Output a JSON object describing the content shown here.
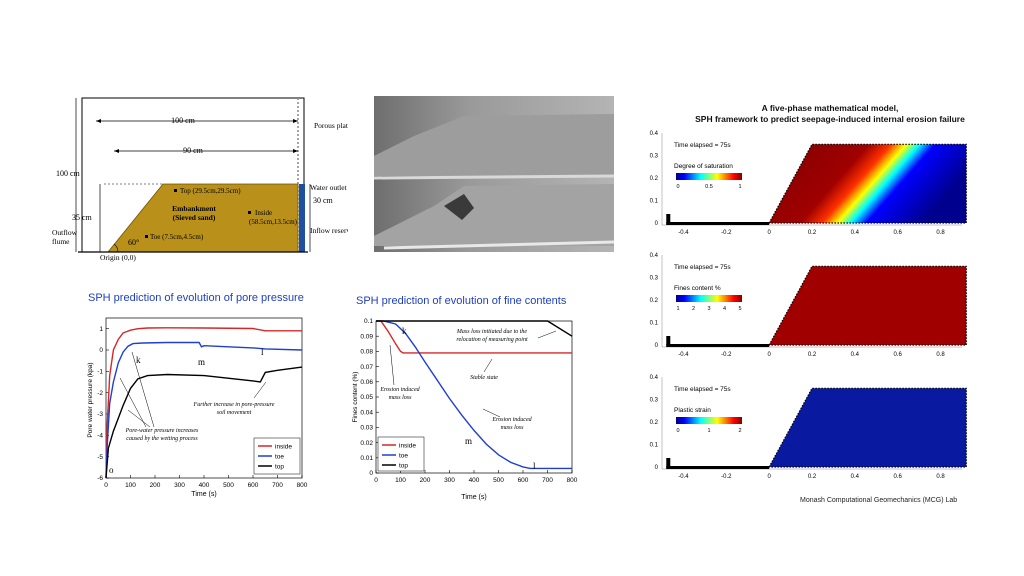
{
  "schematic": {
    "dim_100cm_top": "100 cm",
    "dim_90cm": "90 cm",
    "dim_100cm_left": "100 cm",
    "dim_35cm": "35 cm",
    "dim_30cm": "30 cm",
    "angle": "60°",
    "porous_plate": "Porous plate",
    "water_outlet": "Water outlet",
    "inflow_reservoir": "Inflow reservoir",
    "outflow_flume_1": "Outflow",
    "outflow_flume_2": "flume",
    "origin": "Origin (0,0)",
    "embankment_1": "Embankment",
    "embankment_2": "(Sieved sand)",
    "top_point": "Top (29.5cm,29.5cm)",
    "inside_point_1": "Inside",
    "inside_point_2": "(58.5cm,13.5cm)",
    "toe_point": "Toe (7.5cm,4.5cm)",
    "colors": {
      "sand": "#b8901a",
      "water": "#1f4fa0"
    }
  },
  "charts": {
    "pore": {
      "title": "SPH prediction of evolution of pore pressure",
      "ylabel": "Pore water pressure (kpa)",
      "xlabel": "Time (s)",
      "xlim": [
        0,
        800
      ],
      "ylim": [
        -6,
        1.5
      ],
      "xticks": [
        "0",
        "100",
        "200",
        "300",
        "400",
        "500",
        "600",
        "700",
        "800"
      ],
      "yticks": [
        "-6",
        "-5",
        "-4",
        "-3",
        "-2",
        "-1",
        "0",
        "1"
      ],
      "markers": {
        "k": "k",
        "m": "m",
        "l": "l",
        "o": "o"
      },
      "annotations": {
        "a1_1": "Pore-water pressure increases",
        "a1_2": "caused by the wetting process",
        "a2_1": "Further increase in pore-pressure",
        "a2_2": "soil movement"
      },
      "legend": [
        "inside",
        "toe",
        "top"
      ]
    },
    "fines": {
      "title": "SPH prediction of evolution of fine contents",
      "ylabel": "Fines content (%)",
      "xlabel": "Time (s)",
      "xlim": [
        0,
        800
      ],
      "ylim": [
        0,
        0.1
      ],
      "xticks": [
        "0",
        "100",
        "200",
        "300",
        "400",
        "500",
        "600",
        "700",
        "800"
      ],
      "yticks": [
        "0",
        "0.01",
        "0.02",
        "0.03",
        "0.04",
        "0.05",
        "0.06",
        "0.07",
        "0.08",
        "0.09",
        "0.1"
      ],
      "markers": {
        "k": "k",
        "m": "m",
        "l": "l"
      },
      "annotations": {
        "b1_1": "Mass loss initiated due to the",
        "b1_2": "relocation of measuring point",
        "b2": "Stable state",
        "b3_1": "Erosion induced",
        "b3_2": "mass loss",
        "b4_1": "Erosion induced",
        "b4_2": "mass loss"
      },
      "legend": [
        "inside",
        "toe",
        "top"
      ]
    }
  },
  "chart_data": [
    {
      "type": "line",
      "title": "SPH prediction of evolution of pore pressure",
      "xlabel": "Time (s)",
      "ylabel": "Pore water pressure (kpa)",
      "xlim": [
        0,
        800
      ],
      "ylim": [
        -6,
        1.5
      ],
      "series": [
        {
          "name": "inside",
          "color": "#d62728",
          "x": [
            0,
            5,
            15,
            30,
            50,
            70,
            100,
            130,
            170,
            250,
            400,
            600,
            650,
            800
          ],
          "y": [
            -6,
            -3.5,
            -1.2,
            0.0,
            0.5,
            0.8,
            0.93,
            1.0,
            1.03,
            1.04,
            1.03,
            1.01,
            0.9,
            0.9
          ]
        },
        {
          "name": "toe",
          "color": "#1f3fd0",
          "x": [
            0,
            5,
            15,
            30,
            50,
            70,
            90,
            110,
            150,
            250,
            380,
            390,
            400,
            600,
            650,
            800
          ],
          "y": [
            -6,
            -4.5,
            -2.5,
            -1.5,
            -0.6,
            -0.1,
            0.18,
            0.3,
            0.33,
            0.35,
            0.35,
            0.15,
            0.2,
            0.1,
            0.05,
            0.0
          ]
        },
        {
          "name": "top",
          "color": "#000000",
          "x": [
            0,
            10,
            30,
            50,
            70,
            100,
            130,
            170,
            250,
            400,
            600,
            630,
            650,
            700,
            800
          ],
          "y": [
            -6,
            -4.6,
            -3.8,
            -3.2,
            -2.6,
            -1.8,
            -1.35,
            -1.2,
            -1.15,
            -1.2,
            -1.45,
            -1.5,
            -1.05,
            -0.95,
            -0.8
          ]
        }
      ]
    },
    {
      "type": "line",
      "title": "SPH prediction of evolution of fine contents",
      "xlabel": "Time (s)",
      "ylabel": "Fines content (%)",
      "xlim": [
        0,
        800
      ],
      "ylim": [
        0,
        0.1
      ],
      "series": [
        {
          "name": "inside",
          "color": "#d62728",
          "x": [
            0,
            20,
            50,
            80,
            100,
            110,
            130,
            200,
            800
          ],
          "y": [
            0.1,
            0.1,
            0.093,
            0.085,
            0.08,
            0.079,
            0.079,
            0.079,
            0.079
          ]
        },
        {
          "name": "toe",
          "color": "#1f3fd0",
          "x": [
            0,
            30,
            80,
            120,
            160,
            200,
            250,
            300,
            350,
            400,
            450,
            500,
            550,
            600,
            630,
            800
          ],
          "y": [
            0.1,
            0.1,
            0.098,
            0.092,
            0.083,
            0.073,
            0.061,
            0.049,
            0.038,
            0.028,
            0.019,
            0.012,
            0.007,
            0.004,
            0.003,
            0.003
          ]
        },
        {
          "name": "top",
          "color": "#000000",
          "x": [
            0,
            200,
            400,
            600,
            700,
            720,
            800
          ],
          "y": [
            0.1,
            0.1,
            0.1,
            0.1,
            0.1,
            0.098,
            0.09
          ]
        }
      ]
    }
  ],
  "model": {
    "title_1": "A five-phase mathematical model,",
    "title_2": "SPH framework to predict seepage-induced internal erosion failure",
    "lab": "Monash Computational Geomechanics (MCG) Lab",
    "xticks": [
      "-0.4",
      "-0.2",
      "0",
      "0.2",
      "0.4",
      "0.6",
      "0.8"
    ],
    "yticks": [
      "0",
      "0.1",
      "0.2",
      "0.3",
      "0.4"
    ],
    "panels": [
      {
        "time": "Time elapsed = 75s",
        "cbar_title": "Degree of saturation",
        "cbar_ticks": [
          "0",
          "0.5",
          "1"
        ]
      },
      {
        "time": "Time elapsed = 75s",
        "cbar_title": "Fines content %",
        "cbar_ticks": [
          "1",
          "2",
          "3",
          "4",
          "5"
        ]
      },
      {
        "time": "Time elapsed = 75s",
        "cbar_title": "Plastic strain",
        "cbar_ticks": [
          "0",
          "1",
          "2"
        ]
      }
    ]
  }
}
